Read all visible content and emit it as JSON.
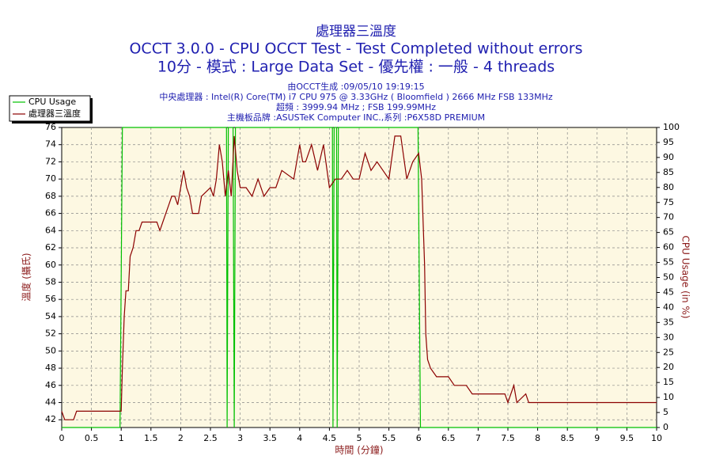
{
  "chart_data": {
    "type": "line",
    "title": "處理器三溫度",
    "subtitle": "OCCT 3.0.0 - CPU OCCT Test - Test Completed without errors",
    "subtitle2": "10分 - 模式 : Large Data Set - 優先權 : 一般 - 4 threads",
    "info": [
      "由OCCT生成 :09/05/10 19:19:15",
      "中央處理器 : Intel(R) Core(TM) i7 CPU 975 @ 3.33GHz ( Bloomfield ) 2666 MHz FSB 133MHz",
      "超頻 : 3999.94 MHz ; FSB 199.99MHz",
      "主機板品牌 :ASUSTeK Computer INC.,系列 :P6X58D PREMIUM"
    ],
    "x_label": "時間 (分鐘)",
    "y_label": "溫度 (攝氏)",
    "y2_label": "CPU Usage (in %)",
    "xlim": [
      0,
      10
    ],
    "xticks": [
      0,
      0.5,
      1,
      1.5,
      2,
      2.5,
      3,
      3.5,
      4,
      4.5,
      5,
      5.5,
      6,
      6.5,
      7,
      7.5,
      8,
      8.5,
      9,
      9.5,
      10
    ],
    "ylim": [
      41.1,
      76
    ],
    "yticks": [
      42,
      44,
      46,
      48,
      50,
      52,
      54,
      56,
      58,
      60,
      62,
      64,
      66,
      68,
      70,
      72,
      74,
      76
    ],
    "y2lim": [
      0,
      100
    ],
    "y2ticks": [
      0,
      5,
      10,
      15,
      20,
      25,
      30,
      35,
      40,
      45,
      50,
      55,
      60,
      65,
      70,
      75,
      80,
      85,
      90,
      95,
      100
    ],
    "grid": true,
    "legend": "top-left",
    "series": [
      {
        "name": "CPU Usage",
        "color": "#00c000",
        "axis": "y2",
        "x": [
          0,
          0.98,
          1.02,
          2.77,
          2.78,
          2.8,
          2.88,
          2.9,
          2.92,
          4.55,
          4.56,
          4.58,
          4.62,
          4.63,
          4.65,
          5.99,
          6.03,
          10
        ],
        "values": [
          0,
          0,
          100,
          100,
          0,
          100,
          100,
          0,
          100,
          100,
          0,
          100,
          100,
          0,
          100,
          100,
          0,
          0
        ]
      },
      {
        "name": "處理器三溫度",
        "color": "#8b0000",
        "axis": "y",
        "x": [
          0,
          0.05,
          0.2,
          0.25,
          1.0,
          1.02,
          1.05,
          1.08,
          1.12,
          1.15,
          1.2,
          1.25,
          1.3,
          1.35,
          1.6,
          1.65,
          1.7,
          1.75,
          1.8,
          1.85,
          1.9,
          1.95,
          2.0,
          2.05,
          2.1,
          2.15,
          2.2,
          2.3,
          2.35,
          2.5,
          2.55,
          2.6,
          2.65,
          2.7,
          2.75,
          2.8,
          2.85,
          2.9,
          2.95,
          3.0,
          3.1,
          3.2,
          3.3,
          3.4,
          3.5,
          3.6,
          3.7,
          3.9,
          4.0,
          4.05,
          4.1,
          4.2,
          4.3,
          4.4,
          4.5,
          4.6,
          4.7,
          4.8,
          4.9,
          5.0,
          5.1,
          5.2,
          5.3,
          5.4,
          5.5,
          5.6,
          5.7,
          5.8,
          5.9,
          6.0,
          6.05,
          6.1,
          6.12,
          6.15,
          6.2,
          6.3,
          6.5,
          6.6,
          6.8,
          6.9,
          7.45,
          7.5,
          7.6,
          7.65,
          7.8,
          7.85,
          10
        ],
        "values": [
          43,
          42,
          42,
          43,
          43,
          48,
          54,
          57,
          57,
          61,
          62,
          64,
          64,
          65,
          65,
          64,
          65,
          66,
          67,
          68,
          68,
          67,
          69,
          71,
          69,
          68,
          66,
          66,
          68,
          69,
          68,
          70,
          74,
          72,
          68,
          71,
          68,
          75,
          71,
          69,
          69,
          68,
          70,
          68,
          69,
          69,
          71,
          70,
          74,
          72,
          72,
          74,
          71,
          74,
          69,
          70,
          70,
          71,
          70,
          70,
          73,
          71,
          72,
          71,
          70,
          75,
          75,
          70,
          72,
          73,
          70,
          60,
          52,
          49,
          48,
          47,
          47,
          46,
          46,
          45,
          45,
          44,
          46,
          44,
          45,
          44,
          44
        ]
      }
    ]
  }
}
